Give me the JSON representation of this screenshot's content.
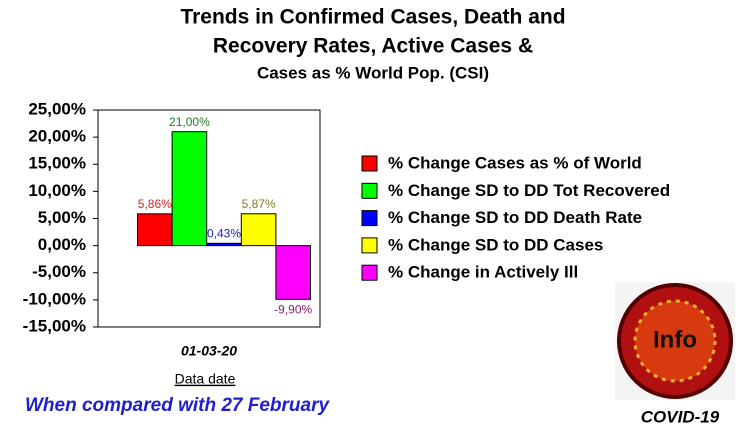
{
  "chart_data": {
    "type": "bar",
    "title": [
      "Trends in Confirmed Cases, Death and",
      "Recovery Rates, Active Cases &",
      "Cases as % World Pop. (CSI)"
    ],
    "categories": [
      "01-03-20"
    ],
    "x_label": "Data date",
    "series": [
      {
        "name": "% Change Cases as % of World",
        "color": "#ff0000",
        "label_color": "#e02020",
        "values": [
          5.86
        ],
        "value_labels": [
          "5,86%"
        ]
      },
      {
        "name": "% Change SD to DD Tot Recovered",
        "color": "#00ff00",
        "label_color": "#208020",
        "values": [
          21.0
        ],
        "value_labels": [
          "21,00%"
        ]
      },
      {
        "name": "% Change SD to DD Death Rate",
        "color": "#0000ff",
        "label_color": "#2020c0",
        "values": [
          0.43
        ],
        "value_labels": [
          "0,43%"
        ]
      },
      {
        "name": "% Change SD to DD Cases",
        "color": "#ffff00",
        "label_color": "#808020",
        "values": [
          5.87
        ],
        "value_labels": [
          "5,87%"
        ]
      },
      {
        "name": "% Change in Actively Ill",
        "color": "#ff00ff",
        "label_color": "#902070",
        "values": [
          -9.9
        ],
        "value_labels": [
          "-9,90%"
        ]
      }
    ],
    "ylim": [
      -15,
      25
    ],
    "yticks": [
      {
        "value": -15,
        "label": "-15,00%"
      },
      {
        "value": -10,
        "label": "-10,00%"
      },
      {
        "value": -5,
        "label": "-5,00%"
      },
      {
        "value": 0,
        "label": "0,00%"
      },
      {
        "value": 5,
        "label": "5,00%"
      },
      {
        "value": 10,
        "label": "10,00%"
      },
      {
        "value": 15,
        "label": "15,00%"
      },
      {
        "value": 20,
        "label": "20,00%"
      },
      {
        "value": 25,
        "label": "25,00%"
      }
    ],
    "grid": false,
    "legend": "right",
    "footnote": "When compared with 27 February",
    "logo_text": "Info",
    "logo_caption": "COVID-19"
  }
}
